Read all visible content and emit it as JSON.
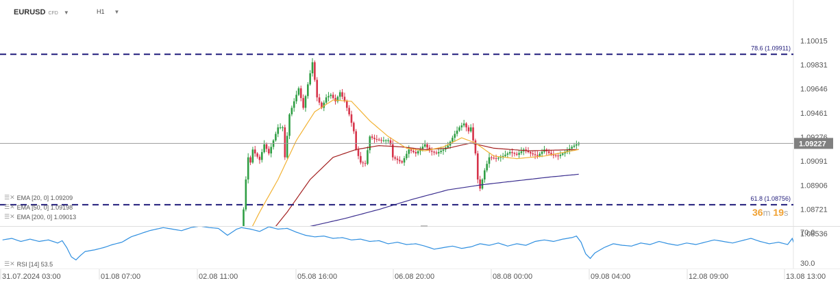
{
  "header": {
    "symbol": "EURUSD",
    "instrument_type": "CFD",
    "timeframe": "H1",
    "symbol_dropdown_icon": "caret-down-icon",
    "timeframe_dropdown_icon": "caret-down-icon"
  },
  "colors": {
    "up_candle": "#2f9e44",
    "down_candle": "#d6334a",
    "ema20": "#f2b233",
    "ema50": "#a32020",
    "ema200": "#3b2e8f",
    "fib_line": "#1f1a7a",
    "rsi_line": "#2f8fe0",
    "timer": "#f0a030",
    "price_tag_bg": "#808080"
  },
  "timer": {
    "minutes": "36",
    "minutes_unit": "m",
    "seconds": "19",
    "seconds_unit": "s"
  },
  "indicators": [
    {
      "label": "EMA [20, 0] 1.09209"
    },
    {
      "label": "EMA [50, 0] 1.09198"
    },
    {
      "label": "EMA [200, 0] 1.09013"
    }
  ],
  "rsi_legend": {
    "label": "RSI [14] 53.5"
  },
  "chart_data": {
    "type": "candlestick",
    "y_axis_ticks": [
      "1.10015",
      "1.09831",
      "1.09646",
      "1.09461",
      "1.09276",
      "1.09091",
      "1.08906",
      "1.08721",
      "1.08536"
    ],
    "ylim": [
      1.0854,
      1.1017
    ],
    "current_price": 1.09227,
    "current_price_label": "1.09227",
    "fib_levels": [
      {
        "label": "78.6 (1.09911)",
        "value": 1.09911
      },
      {
        "label": "61.8 (1.08756)",
        "value": 1.08756
      }
    ],
    "x_axis_labels": [
      "31.07.2024 03:00",
      "01.08 07:00",
      "02.08 11:00",
      "05.08 16:00",
      "06.08 20:00",
      "08.08 00:00",
      "09.08 04:00",
      "12.08 09:00",
      "13.08 13:00"
    ],
    "candles_approx": {
      "start_bar": 104,
      "bar_count": 148,
      "close_path": [
        [
          0,
          1.0848
        ],
        [
          1,
          1.0872
        ],
        [
          2,
          1.0895
        ],
        [
          3,
          1.0912
        ],
        [
          4,
          1.0908
        ],
        [
          5,
          1.0918
        ],
        [
          6,
          1.0915
        ],
        [
          8,
          1.091
        ],
        [
          10,
          1.0922
        ],
        [
          12,
          1.0915
        ],
        [
          14,
          1.0925
        ],
        [
          16,
          1.0935
        ],
        [
          18,
          1.0935
        ],
        [
          19,
          1.0912
        ],
        [
          21,
          1.0945
        ],
        [
          23,
          1.0955
        ],
        [
          25,
          1.0965
        ],
        [
          27,
          1.095
        ],
        [
          29,
          1.0968
        ],
        [
          31,
          1.0985
        ],
        [
          33,
          1.0958
        ],
        [
          35,
          1.095
        ],
        [
          37,
          1.0958
        ],
        [
          39,
          1.096
        ],
        [
          41,
          1.0955
        ],
        [
          43,
          1.0962
        ],
        [
          45,
          1.0955
        ],
        [
          47,
          1.0945
        ],
        [
          49,
          1.0932
        ],
        [
          50,
          1.0918
        ],
        [
          52,
          1.0908
        ],
        [
          54,
          1.0907
        ],
        [
          56,
          1.0928
        ],
        [
          58,
          1.0926
        ],
        [
          61,
          1.0925
        ],
        [
          64,
          1.0925
        ],
        [
          65,
          1.0922
        ],
        [
          66,
          1.0912
        ],
        [
          68,
          1.091
        ],
        [
          70,
          1.0908
        ],
        [
          73,
          1.0918
        ],
        [
          76,
          1.0915
        ],
        [
          80,
          1.0922
        ],
        [
          82,
          1.0917
        ],
        [
          85,
          1.0915
        ],
        [
          88,
          1.0918
        ],
        [
          90,
          1.0921
        ],
        [
          93,
          1.093
        ],
        [
          95,
          1.0935
        ],
        [
          97,
          1.0938
        ],
        [
          99,
          1.0932
        ],
        [
          100,
          1.0935
        ],
        [
          101,
          1.0925
        ],
        [
          102,
          1.0915
        ],
        [
          103,
          1.0895
        ],
        [
          104,
          1.0888
        ],
        [
          106,
          1.0902
        ],
        [
          108,
          1.0912
        ],
        [
          111,
          1.0911
        ],
        [
          114,
          1.0913
        ],
        [
          117,
          1.0916
        ],
        [
          120,
          1.0914
        ],
        [
          123,
          1.0918
        ],
        [
          126,
          1.0915
        ],
        [
          129,
          1.0913
        ],
        [
          132,
          1.0918
        ],
        [
          135,
          1.0914
        ],
        [
          138,
          1.0913
        ],
        [
          141,
          1.0916
        ],
        [
          144,
          1.092
        ],
        [
          147,
          1.0923
        ]
      ]
    },
    "ema20_path": [
      [
        0,
        1.0842
      ],
      [
        8,
        1.087
      ],
      [
        16,
        1.0895
      ],
      [
        24,
        1.0925
      ],
      [
        32,
        1.0947
      ],
      [
        40,
        1.0956
      ],
      [
        48,
        1.0955
      ],
      [
        56,
        1.094
      ],
      [
        64,
        1.0928
      ],
      [
        72,
        1.0919
      ],
      [
        80,
        1.0917
      ],
      [
        88,
        1.092
      ],
      [
        96,
        1.0927
      ],
      [
        102,
        1.0923
      ],
      [
        110,
        1.0913
      ],
      [
        120,
        1.0911
      ],
      [
        132,
        1.0913
      ],
      [
        147,
        1.0918
      ]
    ],
    "ema50_path": [
      [
        0,
        1.083
      ],
      [
        10,
        1.0848
      ],
      [
        20,
        1.087
      ],
      [
        30,
        1.0895
      ],
      [
        40,
        1.0912
      ],
      [
        50,
        1.0918
      ],
      [
        60,
        1.0921
      ],
      [
        70,
        1.092
      ],
      [
        80,
        1.0918
      ],
      [
        90,
        1.0919
      ],
      [
        100,
        1.0923
      ],
      [
        110,
        1.0919
      ],
      [
        125,
        1.0917
      ],
      [
        147,
        1.0918
      ]
    ],
    "ema200_path": [
      [
        0,
        1.0843
      ],
      [
        15,
        1.0852
      ],
      [
        30,
        1.0859
      ],
      [
        45,
        1.0865
      ],
      [
        60,
        1.0872
      ],
      [
        75,
        1.088
      ],
      [
        90,
        1.0887
      ],
      [
        105,
        1.0891
      ],
      [
        120,
        1.0894
      ],
      [
        135,
        1.0897
      ],
      [
        147,
        1.0899
      ]
    ],
    "rsi": {
      "y_axis_ticks": [
        "70.0",
        "30.0"
      ],
      "ylim": [
        25,
        75
      ],
      "path": [
        [
          0,
          60
        ],
        [
          4,
          62
        ],
        [
          8,
          58
        ],
        [
          12,
          61
        ],
        [
          16,
          58
        ],
        [
          20,
          60
        ],
        [
          24,
          56
        ],
        [
          26,
          59
        ],
        [
          28,
          50
        ],
        [
          30,
          38
        ],
        [
          32,
          34
        ],
        [
          34,
          40
        ],
        [
          36,
          45
        ],
        [
          40,
          47
        ],
        [
          44,
          50
        ],
        [
          48,
          54
        ],
        [
          52,
          57
        ],
        [
          56,
          64
        ],
        [
          60,
          68
        ],
        [
          64,
          72
        ],
        [
          67,
          74
        ],
        [
          70,
          76
        ],
        [
          74,
          74
        ],
        [
          78,
          72
        ],
        [
          82,
          76
        ],
        [
          86,
          78
        ],
        [
          90,
          76
        ],
        [
          94,
          75
        ],
        [
          98,
          66
        ],
        [
          100,
          70
        ],
        [
          102,
          74
        ],
        [
          104,
          76
        ],
        [
          108,
          74
        ],
        [
          112,
          71
        ],
        [
          116,
          77
        ],
        [
          120,
          74
        ],
        [
          124,
          75
        ],
        [
          128,
          70
        ],
        [
          132,
          66
        ],
        [
          136,
          64
        ],
        [
          140,
          65
        ],
        [
          144,
          62
        ],
        [
          148,
          63
        ],
        [
          152,
          60
        ],
        [
          156,
          61
        ],
        [
          160,
          58
        ],
        [
          164,
          59
        ],
        [
          168,
          55
        ],
        [
          172,
          57
        ],
        [
          176,
          54
        ],
        [
          180,
          55
        ],
        [
          184,
          52
        ],
        [
          188,
          48
        ],
        [
          192,
          50
        ],
        [
          196,
          52
        ],
        [
          200,
          49
        ],
        [
          204,
          51
        ],
        [
          208,
          55
        ],
        [
          212,
          53
        ],
        [
          216,
          56
        ],
        [
          220,
          52
        ],
        [
          224,
          55
        ],
        [
          228,
          53
        ],
        [
          232,
          58
        ],
        [
          236,
          60
        ],
        [
          240,
          58
        ],
        [
          244,
          61
        ],
        [
          248,
          63
        ],
        [
          250,
          65
        ],
        [
          252,
          57
        ],
        [
          254,
          42
        ],
        [
          256,
          36
        ],
        [
          258,
          43
        ],
        [
          262,
          50
        ],
        [
          266,
          55
        ],
        [
          270,
          53
        ],
        [
          274,
          52
        ],
        [
          278,
          56
        ],
        [
          282,
          54
        ],
        [
          286,
          58
        ],
        [
          290,
          55
        ],
        [
          294,
          53
        ],
        [
          298,
          56
        ],
        [
          302,
          54
        ],
        [
          306,
          57
        ],
        [
          310,
          60
        ],
        [
          314,
          58
        ],
        [
          318,
          56
        ],
        [
          322,
          59
        ],
        [
          326,
          62
        ],
        [
          330,
          58
        ],
        [
          334,
          55
        ],
        [
          338,
          57
        ],
        [
          342,
          54
        ],
        [
          344,
          62
        ],
        [
          345,
          53
        ]
      ]
    }
  }
}
